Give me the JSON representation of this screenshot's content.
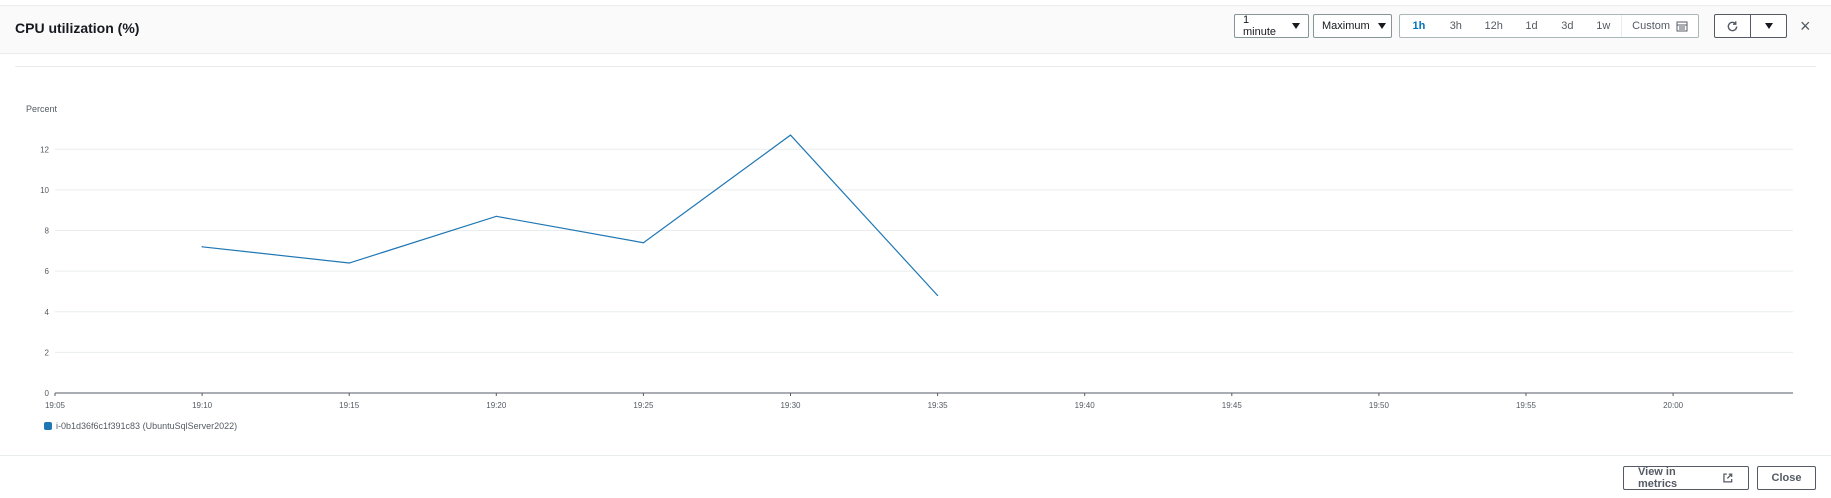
{
  "header": {
    "title": "CPU utilization (%)",
    "period_label": "1 minute",
    "statistic_label": "Maximum",
    "time_ranges": [
      "1h",
      "3h",
      "12h",
      "1d",
      "3d",
      "1w",
      "Custom"
    ],
    "active_range": "1h",
    "close_symbol": "×"
  },
  "chart_data": {
    "type": "line",
    "title": "",
    "ylabel": "Percent",
    "xlabel": "",
    "ylim": [
      0,
      13
    ],
    "yticks": [
      "0",
      "2",
      "4",
      "6",
      "8",
      "10",
      "12"
    ],
    "xticks": [
      "19:05",
      "19:10",
      "19:15",
      "19:20",
      "19:25",
      "19:30",
      "19:35",
      "19:40",
      "19:45",
      "19:50",
      "19:55",
      "20:00"
    ],
    "grid": true,
    "legend_placement": "bottom-left",
    "series": [
      {
        "name": "i-0b1d36f6c1f391c83 (UbuntuSqlServer2022)",
        "color": "#1f77b4",
        "x": [
          "19:10",
          "19:15",
          "19:20",
          "19:25",
          "19:30",
          "19:35"
        ],
        "y": [
          7.2,
          6.4,
          8.7,
          7.4,
          12.7,
          4.8
        ]
      }
    ]
  },
  "footer": {
    "view_in_metrics_label": "View in metrics",
    "close_label": "Close"
  }
}
